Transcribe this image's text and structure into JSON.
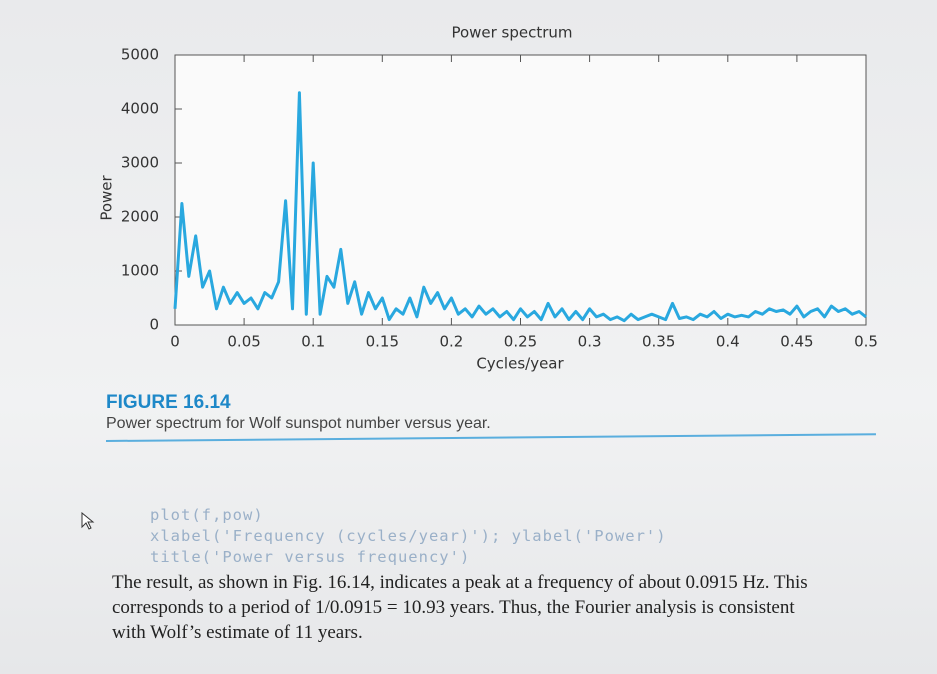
{
  "chart_data": {
    "type": "line",
    "title": "Power spectrum",
    "xlabel": "Cycles/year",
    "ylabel": "Power",
    "x": [
      0,
      0.005,
      0.01,
      0.015,
      0.02,
      0.025,
      0.03,
      0.035,
      0.04,
      0.045,
      0.05,
      0.055,
      0.06,
      0.065,
      0.07,
      0.075,
      0.08,
      0.085,
      0.09,
      0.095,
      0.1,
      0.105,
      0.11,
      0.115,
      0.12,
      0.125,
      0.13,
      0.135,
      0.14,
      0.145,
      0.15,
      0.155,
      0.16,
      0.165,
      0.17,
      0.175,
      0.18,
      0.185,
      0.19,
      0.195,
      0.2,
      0.205,
      0.21,
      0.215,
      0.22,
      0.225,
      0.23,
      0.235,
      0.24,
      0.245,
      0.25,
      0.255,
      0.26,
      0.265,
      0.27,
      0.275,
      0.28,
      0.285,
      0.29,
      0.295,
      0.3,
      0.305,
      0.31,
      0.315,
      0.32,
      0.325,
      0.33,
      0.335,
      0.34,
      0.345,
      0.35,
      0.355,
      0.36,
      0.365,
      0.37,
      0.375,
      0.38,
      0.385,
      0.39,
      0.395,
      0.4,
      0.405,
      0.41,
      0.415,
      0.42,
      0.425,
      0.43,
      0.435,
      0.44,
      0.445,
      0.45,
      0.455,
      0.46,
      0.465,
      0.47,
      0.475,
      0.48,
      0.485,
      0.49,
      0.495,
      0.5
    ],
    "series": [
      {
        "color": "#29a8df",
        "values": [
          300,
          2250,
          900,
          1650,
          700,
          1000,
          300,
          700,
          400,
          600,
          400,
          500,
          300,
          600,
          500,
          800,
          2300,
          300,
          4300,
          200,
          3000,
          200,
          900,
          700,
          1400,
          400,
          800,
          200,
          600,
          300,
          500,
          100,
          300,
          200,
          500,
          150,
          700,
          400,
          600,
          300,
          500,
          200,
          300,
          150,
          350,
          200,
          300,
          150,
          250,
          100,
          300,
          150,
          250,
          100,
          400,
          150,
          300,
          100,
          250,
          100,
          300,
          150,
          200,
          100,
          150,
          80,
          200,
          100,
          150,
          200,
          150,
          100,
          400,
          120,
          150,
          100,
          200,
          150,
          250,
          120,
          200,
          150,
          180,
          150,
          250,
          200,
          300,
          250,
          280,
          200,
          350,
          150,
          250,
          300,
          150,
          350,
          250,
          300,
          200,
          250,
          150
        ]
      }
    ],
    "xlim": [
      0,
      0.5
    ],
    "ylim": [
      0,
      5000
    ],
    "xticks": [
      0,
      0.05,
      0.1,
      0.15,
      0.2,
      0.25,
      0.3,
      0.35,
      0.4,
      0.45,
      0.5
    ],
    "yticks": [
      0,
      1000,
      2000,
      3000,
      4000,
      5000
    ]
  },
  "figure": {
    "number": "FIGURE 16.14",
    "caption": "Power spectrum for Wolf sunspot number versus year."
  },
  "code": [
    "plot(f,pow)",
    "xlabel('Frequency (cycles/year)'); ylabel('Power')",
    "title('Power versus frequency')"
  ],
  "paragraph": [
    "The result, as shown in Fig. 16.14, indicates a peak at a frequency of about 0.0915 Hz. This",
    "corresponds to a period of 1/0.0915 = 10.93 years. Thus, the Fourier analysis is consistent",
    "with Wolf’s estimate of 11 years."
  ]
}
